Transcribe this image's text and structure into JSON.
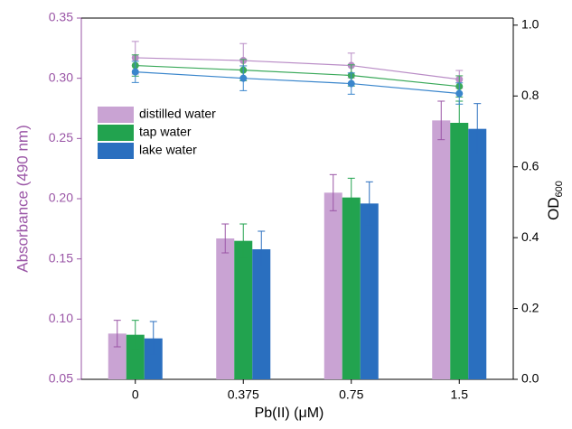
{
  "chart_data": {
    "type": "bar-line",
    "xlabel": "Pb(II) (μM)",
    "ylabel": "Absorbance (490 nm)",
    "y2_label": {
      "main": "OD",
      "sub": "600"
    },
    "categories": [
      "0",
      "0.375",
      "0.75",
      "1.5"
    ],
    "ylim": [
      0.05,
      0.35
    ],
    "yticks": [
      0.05,
      {
        "value": 0.1,
        "label": "0.10"
      },
      0.15,
      {
        "value": 0.2,
        "label": "0.20"
      },
      0.25,
      {
        "value": 0.3,
        "label": "0.30"
      },
      0.35
    ],
    "y2lim": [
      0,
      1.02
    ],
    "y2ticks": [
      {
        "value": 0,
        "label": "0.0"
      },
      0.2,
      0.4,
      0.6,
      0.8,
      {
        "value": 1,
        "label": "1.0"
      }
    ],
    "left_axis_color": "#9a55a6",
    "series": [
      {
        "name": "distilled water",
        "color": "#c9a3d3",
        "values": [
          0.088,
          0.167,
          0.205,
          0.265
        ],
        "errors": [
          0.011,
          0.012,
          0.015,
          0.016
        ],
        "line_color": "#b98cc6",
        "y2_values": [
          0.908,
          0.9,
          0.886,
          0.847
        ],
        "y2_errors": [
          0.046,
          0.048,
          0.035,
          0.025
        ]
      },
      {
        "name": "tap water",
        "color": "#22a34f",
        "values": [
          0.087,
          0.165,
          0.201,
          0.263
        ],
        "errors": [
          0.012,
          0.014,
          0.016,
          0.018
        ],
        "line_color": "#3aa95a",
        "y2_values": [
          0.886,
          0.873,
          0.858,
          0.827
        ],
        "y2_errors": [
          0.03,
          0.03,
          0.03,
          0.03
        ]
      },
      {
        "name": "lake water",
        "color": "#2a6fbf",
        "values": [
          0.084,
          0.158,
          0.196,
          0.258
        ],
        "errors": [
          0.014,
          0.015,
          0.018,
          0.021
        ],
        "line_color": "#3a86cc",
        "y2_values": [
          0.868,
          0.85,
          0.835,
          0.807
        ],
        "y2_errors": [
          0.03,
          0.035,
          0.03,
          0.03
        ]
      }
    ]
  }
}
